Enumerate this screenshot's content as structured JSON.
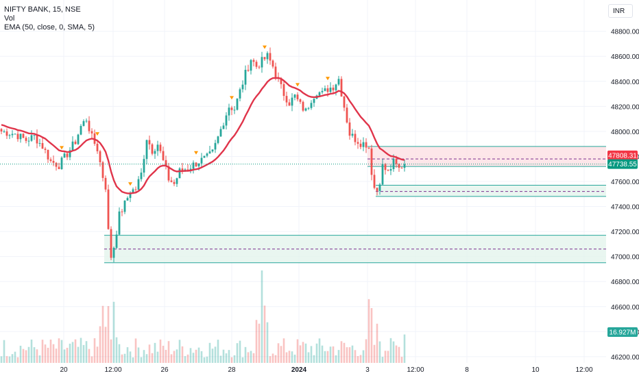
{
  "header": {
    "symbol": "NIFTY BANK, 15, NSE",
    "vol_label": "Vol",
    "ema_label": "EMA (50, close, 0, SMA, 5)",
    "currency": "INR"
  },
  "colors": {
    "up": "#26a69a",
    "down": "#ef5350",
    "ema": "#e0344a",
    "zone_green": "#26a69a",
    "zone_red": "#f23645",
    "grid": "#f0f3fa",
    "axis_text": "#131722"
  },
  "chart_data": {
    "type": "candlestick",
    "price_axis": {
      "ticks": [
        "48800.00",
        "48600.00",
        "48400.00",
        "48200.00",
        "48000.00",
        "47800.00",
        "47600.00",
        "47400.00",
        "47200.00",
        "47000.00",
        "46800.00",
        "46600.00",
        "46400.00",
        "46200.00"
      ],
      "tick_values": [
        48800,
        48600,
        48400,
        48200,
        48000,
        47800,
        47600,
        47400,
        47200,
        47000,
        46800,
        46600,
        46400,
        46200
      ],
      "range": [
        46150,
        49050
      ]
    },
    "time_axis": {
      "labels": [
        "20",
        "12:00",
        "26",
        "28",
        "2024",
        "3",
        "12:00",
        "8",
        "10",
        "12:00"
      ],
      "bold_label": "2024"
    },
    "price_labels": [
      {
        "text": "47808.31",
        "value": 47808.31,
        "color": "#f23645"
      },
      {
        "text": "47738.55",
        "value": 47738.55,
        "color": "#089981"
      }
    ],
    "volume_label": {
      "text": "16.927M",
      "color": "#26a69a"
    },
    "ema_period": 50,
    "price_path": [
      [
        0,
        48000
      ],
      [
        5,
        47980
      ],
      [
        9,
        47930
      ],
      [
        12,
        47960
      ],
      [
        15,
        47880
      ],
      [
        18,
        47760
      ],
      [
        21,
        47730
      ],
      [
        24,
        47820
      ],
      [
        27,
        47920
      ],
      [
        29,
        48040
      ],
      [
        31,
        48100
      ],
      [
        33,
        47950
      ],
      [
        35,
        47860
      ],
      [
        37,
        47640
      ],
      [
        38,
        47560
      ],
      [
        39,
        47200
      ],
      [
        40,
        47000
      ],
      [
        41,
        47080
      ],
      [
        43,
        47330
      ],
      [
        45,
        47420
      ],
      [
        47,
        47520
      ],
      [
        49,
        47540
      ],
      [
        51,
        47660
      ],
      [
        53,
        47950
      ],
      [
        55,
        47850
      ],
      [
        57,
        47900
      ],
      [
        59,
        47760
      ],
      [
        61,
        47620
      ],
      [
        63,
        47580
      ],
      [
        65,
        47680
      ],
      [
        67,
        47700
      ],
      [
        69,
        47720
      ],
      [
        72,
        47760
      ],
      [
        75,
        47790
      ],
      [
        77,
        47830
      ],
      [
        79,
        47950
      ],
      [
        81,
        48080
      ],
      [
        83,
        48200
      ],
      [
        85,
        48180
      ],
      [
        87,
        48320
      ],
      [
        89,
        48460
      ],
      [
        91,
        48580
      ],
      [
        93,
        48520
      ],
      [
        95,
        48560
      ],
      [
        97,
        48600
      ],
      [
        99,
        48520
      ],
      [
        101,
        48400
      ],
      [
        103,
        48300
      ],
      [
        105,
        48230
      ],
      [
        107,
        48280
      ],
      [
        109,
        48210
      ],
      [
        111,
        48160
      ],
      [
        113,
        48260
      ],
      [
        115,
        48320
      ],
      [
        117,
        48300
      ],
      [
        119,
        48340
      ],
      [
        121,
        48360
      ],
      [
        123,
        48420
      ],
      [
        125,
        48200
      ],
      [
        127,
        47980
      ],
      [
        129,
        47940
      ],
      [
        131,
        47910
      ],
      [
        133,
        47900
      ],
      [
        134,
        47870
      ],
      [
        135,
        47680
      ],
      [
        136,
        47550
      ],
      [
        137,
        47530
      ],
      [
        138,
        47610
      ],
      [
        139,
        47720
      ],
      [
        141,
        47670
      ],
      [
        143,
        47750
      ],
      [
        145,
        47700
      ],
      [
        147,
        47750
      ]
    ],
    "candle_count": 148,
    "supply_demand_zones": [
      {
        "kind": "supply",
        "from_candle": 134,
        "top": 47880,
        "mid": 47780,
        "bottom": 47720
      },
      {
        "kind": "demand",
        "from_candle": 137,
        "top": 47570,
        "mid": 47520,
        "bottom": 47480
      },
      {
        "kind": "demand",
        "from_candle": 38,
        "top": 47170,
        "mid": 47060,
        "bottom": 46950
      }
    ],
    "last_price": 47738.55,
    "ema_value": 47808.31,
    "volume_axis": {
      "max_millions": 55
    }
  }
}
